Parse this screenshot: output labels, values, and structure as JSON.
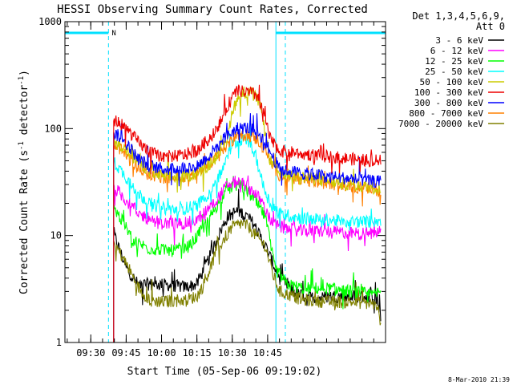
{
  "chart_data": {
    "type": "line",
    "title": "HESSI Observing Summary Count Rates, Corrected",
    "xlabel": "Start Time (05-Sep-06 09:19:02)",
    "ylabel_main": "Corrected Count Rate (s",
    "ylabel_sup1": "-1",
    "ylabel_mid": " detector",
    "ylabel_sup2": "-1",
    "ylabel_end": ")",
    "yscale": "log",
    "ylim": [
      1,
      1000
    ],
    "xlim": [
      19.03,
      155.0
    ],
    "x_unit": "minutes after 09:00 UT",
    "yticks": [
      {
        "value": 1,
        "label": "1"
      },
      {
        "value": 10,
        "label": "10"
      },
      {
        "value": 100,
        "label": "100"
      },
      {
        "value": 1000,
        "label": "1000"
      }
    ],
    "xticks": [
      {
        "value": 30,
        "label": "09:30"
      },
      {
        "value": 45,
        "label": "09:45"
      },
      {
        "value": 60,
        "label": "10:00"
      },
      {
        "value": 75,
        "label": "10:15"
      },
      {
        "value": 90,
        "label": "10:30"
      },
      {
        "value": 105,
        "label": "10:45"
      }
    ],
    "legend_header": [
      "Det 1,3,4,5,6,9,",
      "Att 0"
    ],
    "legend_position": "right",
    "footer_date": "8-Mar-2010 21:39",
    "night_marker": "N",
    "annotations": {
      "night_intervals": [
        [
          19.03,
          37.5
        ],
        [
          108.5,
          155.0
        ]
      ],
      "vlines_dashed": [
        37.5,
        112.5,
        155.0
      ],
      "vlines_solid": [
        108.5
      ]
    },
    "data_start": 39.7,
    "data_end": 153.0,
    "series": [
      {
        "name": "3 - 6 keV",
        "color": "#000000",
        "points": [
          [
            40,
            10
          ],
          [
            45,
            5
          ],
          [
            50,
            3.5
          ],
          [
            60,
            3.5
          ],
          [
            70,
            3.3
          ],
          [
            75,
            3.5
          ],
          [
            80,
            6
          ],
          [
            85,
            11
          ],
          [
            88,
            15
          ],
          [
            92,
            17
          ],
          [
            95,
            16
          ],
          [
            99,
            13
          ],
          [
            104,
            8
          ],
          [
            110,
            4
          ],
          [
            118,
            2.8
          ],
          [
            125,
            2.6
          ],
          [
            132,
            2.7
          ],
          [
            140,
            2.7
          ],
          [
            150,
            2.7
          ],
          [
            153,
            2
          ]
        ]
      },
      {
        "name": "6 - 12 keV",
        "color": "#ff00ff",
        "points": [
          [
            40,
            28
          ],
          [
            43,
            24
          ],
          [
            50,
            16
          ],
          [
            60,
            13
          ],
          [
            70,
            13
          ],
          [
            75,
            14
          ],
          [
            80,
            18
          ],
          [
            85,
            24
          ],
          [
            88,
            30
          ],
          [
            92,
            32
          ],
          [
            95,
            30
          ],
          [
            99,
            26
          ],
          [
            103,
            20
          ],
          [
            106,
            14
          ],
          [
            110,
            12
          ],
          [
            120,
            11
          ],
          [
            130,
            11
          ],
          [
            140,
            10.5
          ],
          [
            150,
            10.5
          ],
          [
            153,
            11
          ]
        ]
      },
      {
        "name": "12 - 25 keV",
        "color": "#00ff00",
        "points": [
          [
            40,
            18
          ],
          [
            43,
            14
          ],
          [
            48,
            9
          ],
          [
            55,
            7.5
          ],
          [
            65,
            7.2
          ],
          [
            72,
            8
          ],
          [
            78,
            12
          ],
          [
            84,
            20
          ],
          [
            88,
            27
          ],
          [
            92,
            30
          ],
          [
            95,
            28
          ],
          [
            99,
            22
          ],
          [
            104,
            15
          ],
          [
            108,
            5
          ],
          [
            113,
            3.5
          ],
          [
            120,
            3.2
          ],
          [
            130,
            3.2
          ],
          [
            140,
            3
          ],
          [
            150,
            2.8
          ],
          [
            153,
            3
          ]
        ]
      },
      {
        "name": "25 - 50 keV",
        "color": "#00ffff",
        "points": [
          [
            40,
            48
          ],
          [
            43,
            40
          ],
          [
            50,
            25
          ],
          [
            55,
            20
          ],
          [
            60,
            18
          ],
          [
            65,
            17.5
          ],
          [
            70,
            18
          ],
          [
            75,
            19
          ],
          [
            80,
            25
          ],
          [
            85,
            38
          ],
          [
            90,
            70
          ],
          [
            94,
            80
          ],
          [
            97,
            75
          ],
          [
            100,
            55
          ],
          [
            103,
            30
          ],
          [
            106,
            20
          ],
          [
            110,
            16
          ],
          [
            120,
            14.5
          ],
          [
            130,
            14
          ],
          [
            140,
            13.5
          ],
          [
            150,
            13.5
          ],
          [
            153,
            14
          ]
        ]
      },
      {
        "name": "50 - 100 keV",
        "color": "#cccc00",
        "points": [
          [
            40,
            75
          ],
          [
            43,
            70
          ],
          [
            50,
            48
          ],
          [
            55,
            40
          ],
          [
            60,
            36
          ],
          [
            65,
            35
          ],
          [
            70,
            36
          ],
          [
            75,
            38
          ],
          [
            80,
            45
          ],
          [
            85,
            60
          ],
          [
            88,
            80
          ],
          [
            90,
            150
          ],
          [
            94,
            220
          ],
          [
            98,
            215
          ],
          [
            101,
            185
          ],
          [
            104,
            90
          ],
          [
            106,
            50
          ],
          [
            110,
            38
          ],
          [
            120,
            35
          ],
          [
            130,
            32
          ],
          [
            140,
            30
          ],
          [
            150,
            28
          ],
          [
            153,
            28
          ]
        ]
      },
      {
        "name": "100 - 300 keV",
        "color": "#ee0000",
        "points": [
          [
            40,
            120
          ],
          [
            43,
            110
          ],
          [
            47,
            90
          ],
          [
            50,
            75
          ],
          [
            55,
            60
          ],
          [
            60,
            55
          ],
          [
            65,
            55
          ],
          [
            70,
            57
          ],
          [
            75,
            62
          ],
          [
            80,
            80
          ],
          [
            85,
            115
          ],
          [
            89,
            180
          ],
          [
            92,
            225
          ],
          [
            95,
            220
          ],
          [
            98,
            215
          ],
          [
            101,
            200
          ],
          [
            103,
            150
          ],
          [
            106,
            80
          ],
          [
            110,
            62
          ],
          [
            120,
            58
          ],
          [
            130,
            55
          ],
          [
            140,
            52
          ],
          [
            150,
            50
          ],
          [
            153,
            50
          ]
        ]
      },
      {
        "name": "300 - 800 keV",
        "color": "#0000ff",
        "points": [
          [
            40,
            90
          ],
          [
            43,
            82
          ],
          [
            47,
            65
          ],
          [
            50,
            52
          ],
          [
            55,
            45
          ],
          [
            60,
            42
          ],
          [
            65,
            42
          ],
          [
            70,
            43
          ],
          [
            75,
            45
          ],
          [
            80,
            55
          ],
          [
            85,
            75
          ],
          [
            89,
            90
          ],
          [
            92,
            100
          ],
          [
            95,
            102
          ],
          [
            98,
            100
          ],
          [
            101,
            92
          ],
          [
            104,
            75
          ],
          [
            107,
            55
          ],
          [
            110,
            42
          ],
          [
            120,
            38
          ],
          [
            130,
            36
          ],
          [
            140,
            34
          ],
          [
            150,
            32
          ],
          [
            153,
            32
          ]
        ]
      },
      {
        "name": "800 - 7000 keV",
        "color": "#ff8000",
        "points": [
          [
            40,
            68
          ],
          [
            43,
            62
          ],
          [
            47,
            50
          ],
          [
            50,
            42
          ],
          [
            55,
            37
          ],
          [
            60,
            35
          ],
          [
            65,
            35
          ],
          [
            70,
            36
          ],
          [
            75,
            38
          ],
          [
            80,
            46
          ],
          [
            85,
            62
          ],
          [
            89,
            75
          ],
          [
            92,
            85
          ],
          [
            95,
            88
          ],
          [
            98,
            85
          ],
          [
            101,
            78
          ],
          [
            104,
            62
          ],
          [
            107,
            45
          ],
          [
            110,
            37
          ],
          [
            120,
            33
          ],
          [
            130,
            31
          ],
          [
            140,
            29
          ],
          [
            150,
            27
          ],
          [
            153,
            26
          ]
        ]
      },
      {
        "name": "7000 - 20000 keV",
        "color": "#808000",
        "points": [
          [
            40,
            8.5
          ],
          [
            43,
            6.5
          ],
          [
            46,
            5
          ],
          [
            50,
            3.3
          ],
          [
            55,
            2.5
          ],
          [
            60,
            2.4
          ],
          [
            70,
            2.5
          ],
          [
            75,
            2.7
          ],
          [
            78,
            3.5
          ],
          [
            82,
            6
          ],
          [
            86,
            9
          ],
          [
            90,
            12
          ],
          [
            94,
            13
          ],
          [
            97,
            12
          ],
          [
            100,
            10
          ],
          [
            104,
            8
          ],
          [
            107,
            4.5
          ],
          [
            110,
            3
          ],
          [
            120,
            2.5
          ],
          [
            130,
            2.4
          ],
          [
            140,
            2.4
          ],
          [
            150,
            2.3
          ],
          [
            153,
            1.6
          ]
        ]
      }
    ]
  }
}
